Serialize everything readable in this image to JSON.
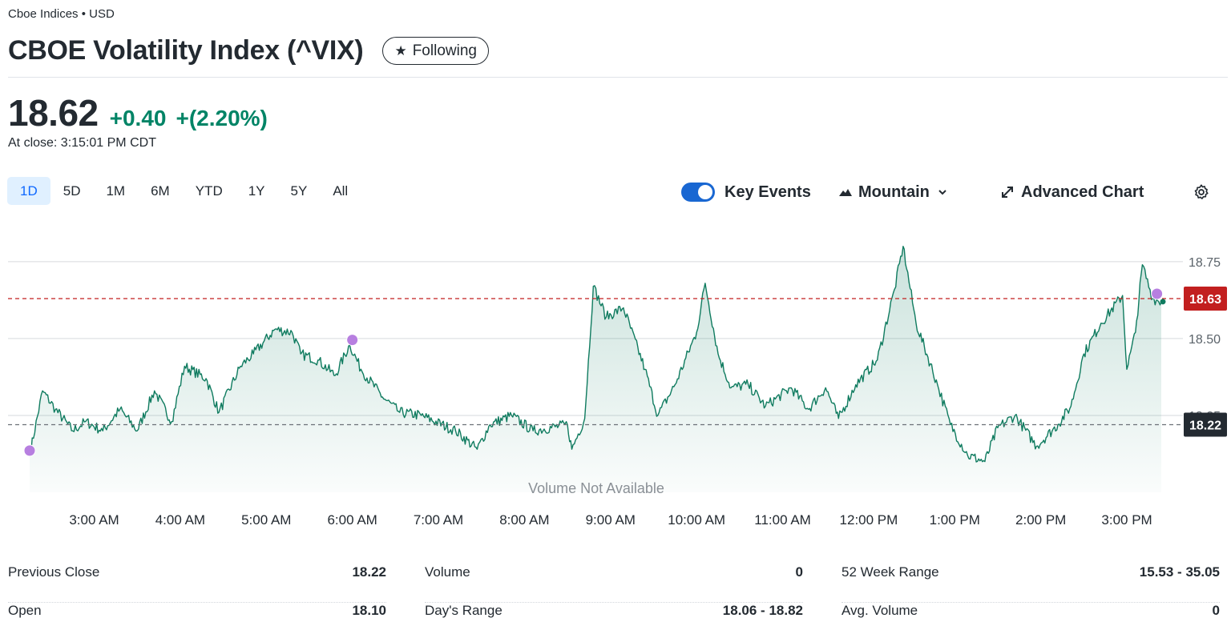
{
  "header": {
    "exchange": "Cboe Indices • USD",
    "title": "CBOE Volatility Index (^VIX)",
    "follow_label": "Following",
    "follow_icon": "star-icon"
  },
  "quote": {
    "price": "18.62",
    "change": "+0.40",
    "change_pct": "+(2.20%)",
    "close_time": "At close: 3:15:01 PM CDT",
    "up_color": "#008466"
  },
  "ranges": [
    {
      "label": "1D",
      "active": true
    },
    {
      "label": "5D"
    },
    {
      "label": "1M"
    },
    {
      "label": "6M"
    },
    {
      "label": "YTD"
    },
    {
      "label": "1Y"
    },
    {
      "label": "5Y"
    },
    {
      "label": "All"
    }
  ],
  "toolbar": {
    "key_events_label": "Key Events",
    "key_events_on": true,
    "chart_type_label": "Mountain",
    "advanced_label": "Advanced Chart",
    "settings_icon": "gear-icon"
  },
  "chart_data": {
    "type": "area",
    "series": [
      {
        "values": [
          [
            2.25,
            18.12
          ],
          [
            2.4,
            18.33
          ],
          [
            2.55,
            18.27
          ],
          [
            2.75,
            18.2
          ],
          [
            2.9,
            18.23
          ],
          [
            3.1,
            18.2
          ],
          [
            3.3,
            18.27
          ],
          [
            3.5,
            18.2
          ],
          [
            3.7,
            18.33
          ],
          [
            3.9,
            18.23
          ],
          [
            4.05,
            18.41
          ],
          [
            4.3,
            18.37
          ],
          [
            4.45,
            18.26
          ],
          [
            4.7,
            18.41
          ],
          [
            4.85,
            18.45
          ],
          [
            5.1,
            18.53
          ],
          [
            5.3,
            18.52
          ],
          [
            5.4,
            18.45
          ],
          [
            5.6,
            18.43
          ],
          [
            5.8,
            18.38
          ],
          [
            5.97,
            18.48
          ],
          [
            6.1,
            18.4
          ],
          [
            6.35,
            18.31
          ],
          [
            6.55,
            18.26
          ],
          [
            6.8,
            18.25
          ],
          [
            7.2,
            18.2
          ],
          [
            7.45,
            18.14
          ],
          [
            7.6,
            18.22
          ],
          [
            7.85,
            18.25
          ],
          [
            8.1,
            18.2
          ],
          [
            8.5,
            18.22
          ],
          [
            8.55,
            18.14
          ],
          [
            8.7,
            18.24
          ],
          [
            8.8,
            18.67
          ],
          [
            8.95,
            18.57
          ],
          [
            9.15,
            18.6
          ],
          [
            9.4,
            18.4
          ],
          [
            9.55,
            18.25
          ],
          [
            9.75,
            18.35
          ],
          [
            10.0,
            18.52
          ],
          [
            10.1,
            18.68
          ],
          [
            10.25,
            18.45
          ],
          [
            10.4,
            18.34
          ],
          [
            10.6,
            18.35
          ],
          [
            10.8,
            18.28
          ],
          [
            11.1,
            18.34
          ],
          [
            11.3,
            18.27
          ],
          [
            11.5,
            18.34
          ],
          [
            11.65,
            18.24
          ],
          [
            11.85,
            18.35
          ],
          [
            12.1,
            18.43
          ],
          [
            12.3,
            18.66
          ],
          [
            12.4,
            18.8
          ],
          [
            12.55,
            18.55
          ],
          [
            12.8,
            18.35
          ],
          [
            12.95,
            18.22
          ],
          [
            13.15,
            18.12
          ],
          [
            13.35,
            18.1
          ],
          [
            13.5,
            18.21
          ],
          [
            13.7,
            18.25
          ],
          [
            13.95,
            18.15
          ],
          [
            14.2,
            18.22
          ],
          [
            14.35,
            18.28
          ],
          [
            14.5,
            18.45
          ],
          [
            14.7,
            18.55
          ],
          [
            14.95,
            18.64
          ],
          [
            15.0,
            18.4
          ],
          [
            15.1,
            18.52
          ],
          [
            15.18,
            18.74
          ],
          [
            15.3,
            18.63
          ],
          [
            15.4,
            18.62
          ]
        ]
      }
    ],
    "x_tick_labels": [
      "3:00 AM",
      "4:00 AM",
      "5:00 AM",
      "6:00 AM",
      "7:00 AM",
      "8:00 AM",
      "9:00 AM",
      "10:00 AM",
      "11:00 AM",
      "12:00 PM",
      "1:00 PM",
      "2:00 PM",
      "3:00 PM"
    ],
    "x_tick_hours": [
      3,
      4,
      5,
      6,
      7,
      8,
      9,
      10,
      11,
      12,
      13,
      14,
      15
    ],
    "xlim": [
      2.25,
      15.4
    ],
    "y_ticks": [
      18.75,
      18.5,
      18.25
    ],
    "y_tick_labels": [
      "18.75",
      "18.50",
      "18.25"
    ],
    "ylim": [
      18.0,
      18.82
    ],
    "current_value": 18.63,
    "current_label": "18.63",
    "previous_close": 18.22,
    "previous_close_label": "18.22",
    "key_event_hours": [
      2.25,
      6.0,
      15.35
    ],
    "volume_note": "Volume Not Available",
    "line_color": "#0f7b5f",
    "current_color": "#c21f1f",
    "prev_close_color": "#232a31",
    "event_color": "#b77fe0"
  },
  "stats": [
    [
      {
        "label": "Previous Close",
        "value": "18.22"
      },
      {
        "label": "Open",
        "value": "18.10"
      }
    ],
    [
      {
        "label": "Volume",
        "value": "0"
      },
      {
        "label": "Day's Range",
        "value": "18.06 - 18.82"
      }
    ],
    [
      {
        "label": "52 Week Range",
        "value": "15.53 - 35.05"
      },
      {
        "label": "Avg. Volume",
        "value": "0"
      }
    ]
  ]
}
